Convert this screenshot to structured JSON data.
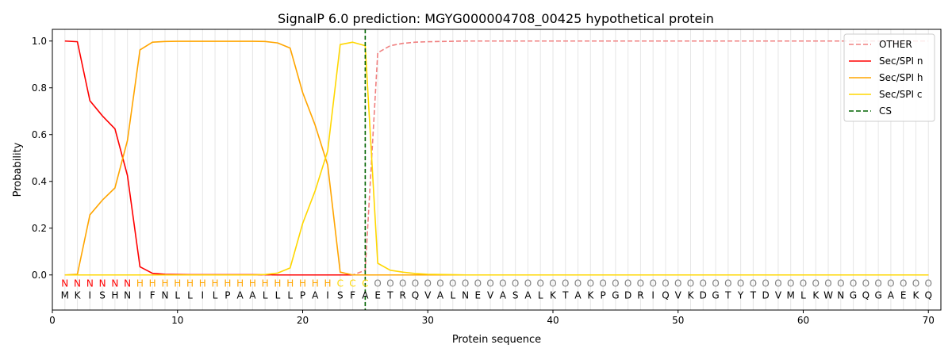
{
  "chart_data": {
    "type": "line",
    "title": "SignalP 6.0 prediction: MGYG000004708_00425 hypothetical protein",
    "xlabel": "Protein sequence",
    "ylabel": "Probability",
    "xlim": [
      0,
      71
    ],
    "ylim": [
      -0.15,
      1.05
    ],
    "xticks": [
      0,
      10,
      20,
      30,
      40,
      50,
      60,
      70
    ],
    "yticks": [
      "0.0",
      "0.2",
      "0.4",
      "0.6",
      "0.8",
      "1.0"
    ],
    "ytick_values": [
      0.0,
      0.2,
      0.4,
      0.6,
      0.8,
      1.0
    ],
    "grid": "vertical lines at each residue",
    "legend_position": "top-right",
    "sequence": [
      "M",
      "K",
      "I",
      "S",
      "H",
      "N",
      "I",
      "F",
      "N",
      "L",
      "L",
      "I",
      "L",
      "P",
      "A",
      "A",
      "L",
      "L",
      "L",
      "P",
      "A",
      "I",
      "S",
      "F",
      "A",
      "E",
      "T",
      "R",
      "Q",
      "V",
      "A",
      "L",
      "N",
      "E",
      "V",
      "A",
      "S",
      "A",
      "L",
      "K",
      "T",
      "A",
      "K",
      "P",
      "G",
      "D",
      "R",
      "I",
      "Q",
      "V",
      "K",
      "D",
      "G",
      "T",
      "Y",
      "T",
      "D",
      "V",
      "M",
      "L",
      "K",
      "W",
      "N",
      "G",
      "Q",
      "G",
      "A",
      "E",
      "K",
      "Q"
    ],
    "labels": [
      "N",
      "N",
      "N",
      "N",
      "N",
      "N",
      "H",
      "H",
      "H",
      "H",
      "H",
      "H",
      "H",
      "H",
      "H",
      "H",
      "H",
      "H",
      "H",
      "H",
      "H",
      "H",
      "C",
      "C",
      "C",
      "O",
      "O",
      "O",
      "O",
      "O",
      "O",
      "O",
      "O",
      "O",
      "O",
      "O",
      "O",
      "O",
      "O",
      "O",
      "O",
      "O",
      "O",
      "O",
      "O",
      "O",
      "O",
      "O",
      "O",
      "O",
      "O",
      "O",
      "O",
      "O",
      "O",
      "O",
      "O",
      "O",
      "O",
      "O",
      "O",
      "O",
      "O",
      "O",
      "O",
      "O",
      "O",
      "O",
      "O",
      "O"
    ],
    "label_colors": {
      "N": "#ff0000",
      "H": "#ffa500",
      "C": "#ffd700",
      "O": "#808080"
    },
    "cleavage_site": 25,
    "series": [
      {
        "name": "OTHER",
        "color": "#f08080",
        "dash": true,
        "values": [
          0,
          0,
          0,
          0,
          0,
          0,
          0,
          0,
          0,
          0,
          0,
          0,
          0,
          0,
          0,
          0,
          0,
          0,
          0,
          0,
          0,
          0,
          0,
          0,
          0.02,
          0.95,
          0.98,
          0.99,
          0.995,
          0.997,
          0.998,
          0.999,
          1,
          1,
          1,
          1,
          1,
          1,
          1,
          1,
          1,
          1,
          1,
          1,
          1,
          1,
          1,
          1,
          1,
          1,
          1,
          1,
          1,
          1,
          1,
          1,
          1,
          1,
          1,
          1,
          1,
          1,
          1,
          1,
          1,
          1,
          1,
          1,
          1,
          1
        ]
      },
      {
        "name": "Sec/SPI n",
        "color": "#ff0000",
        "dash": false,
        "values": [
          1.0,
          0.997,
          0.745,
          0.68,
          0.625,
          0.425,
          0.035,
          0.007,
          0.003,
          0.002,
          0.001,
          0.001,
          0.001,
          0.001,
          0.001,
          0.001,
          0.001,
          0,
          0,
          0,
          0,
          0,
          0,
          0,
          0,
          0,
          0,
          0,
          0,
          0,
          0,
          0,
          0,
          0,
          0,
          0,
          0,
          0,
          0,
          0,
          0,
          0,
          0,
          0,
          0,
          0,
          0,
          0,
          0,
          0,
          0,
          0,
          0,
          0,
          0,
          0,
          0,
          0,
          0,
          0,
          0,
          0,
          0,
          0,
          0,
          0,
          0,
          0,
          0,
          0
        ]
      },
      {
        "name": "Sec/SPI h",
        "color": "#ffa500",
        "dash": false,
        "values": [
          0,
          0.003,
          0.257,
          0.32,
          0.372,
          0.575,
          0.962,
          0.995,
          0.998,
          0.999,
          0.999,
          0.999,
          0.999,
          0.999,
          0.999,
          0.999,
          0.998,
          0.992,
          0.97,
          0.78,
          0.64,
          0.47,
          0.012,
          0,
          0,
          0,
          0,
          0,
          0,
          0,
          0,
          0,
          0,
          0,
          0,
          0,
          0,
          0,
          0,
          0,
          0,
          0,
          0,
          0,
          0,
          0,
          0,
          0,
          0,
          0,
          0,
          0,
          0,
          0,
          0,
          0,
          0,
          0,
          0,
          0,
          0,
          0,
          0,
          0,
          0,
          0,
          0,
          0,
          0,
          0
        ]
      },
      {
        "name": "Sec/SPI c",
        "color": "#ffd700",
        "dash": false,
        "values": [
          0,
          0,
          0,
          0,
          0,
          0,
          0,
          0,
          0,
          0,
          0,
          0,
          0,
          0,
          0,
          0,
          0.002,
          0.008,
          0.03,
          0.22,
          0.36,
          0.53,
          0.985,
          0.995,
          0.98,
          0.05,
          0.02,
          0.012,
          0.006,
          0.003,
          0.002,
          0.001,
          0,
          0,
          0,
          0,
          0,
          0,
          0,
          0,
          0,
          0,
          0,
          0,
          0,
          0,
          0,
          0,
          0,
          0,
          0,
          0,
          0,
          0,
          0,
          0,
          0,
          0,
          0,
          0,
          0,
          0,
          0,
          0,
          0,
          0,
          0,
          0,
          0,
          0
        ]
      }
    ],
    "legend": [
      {
        "label": "OTHER",
        "color": "#f08080",
        "dash": true
      },
      {
        "label": "Sec/SPI n",
        "color": "#ff0000",
        "dash": false
      },
      {
        "label": "Sec/SPI h",
        "color": "#ffa500",
        "dash": false
      },
      {
        "label": "Sec/SPI c",
        "color": "#ffd700",
        "dash": false
      },
      {
        "label": "CS",
        "color": "#006400",
        "dash": true
      }
    ]
  }
}
